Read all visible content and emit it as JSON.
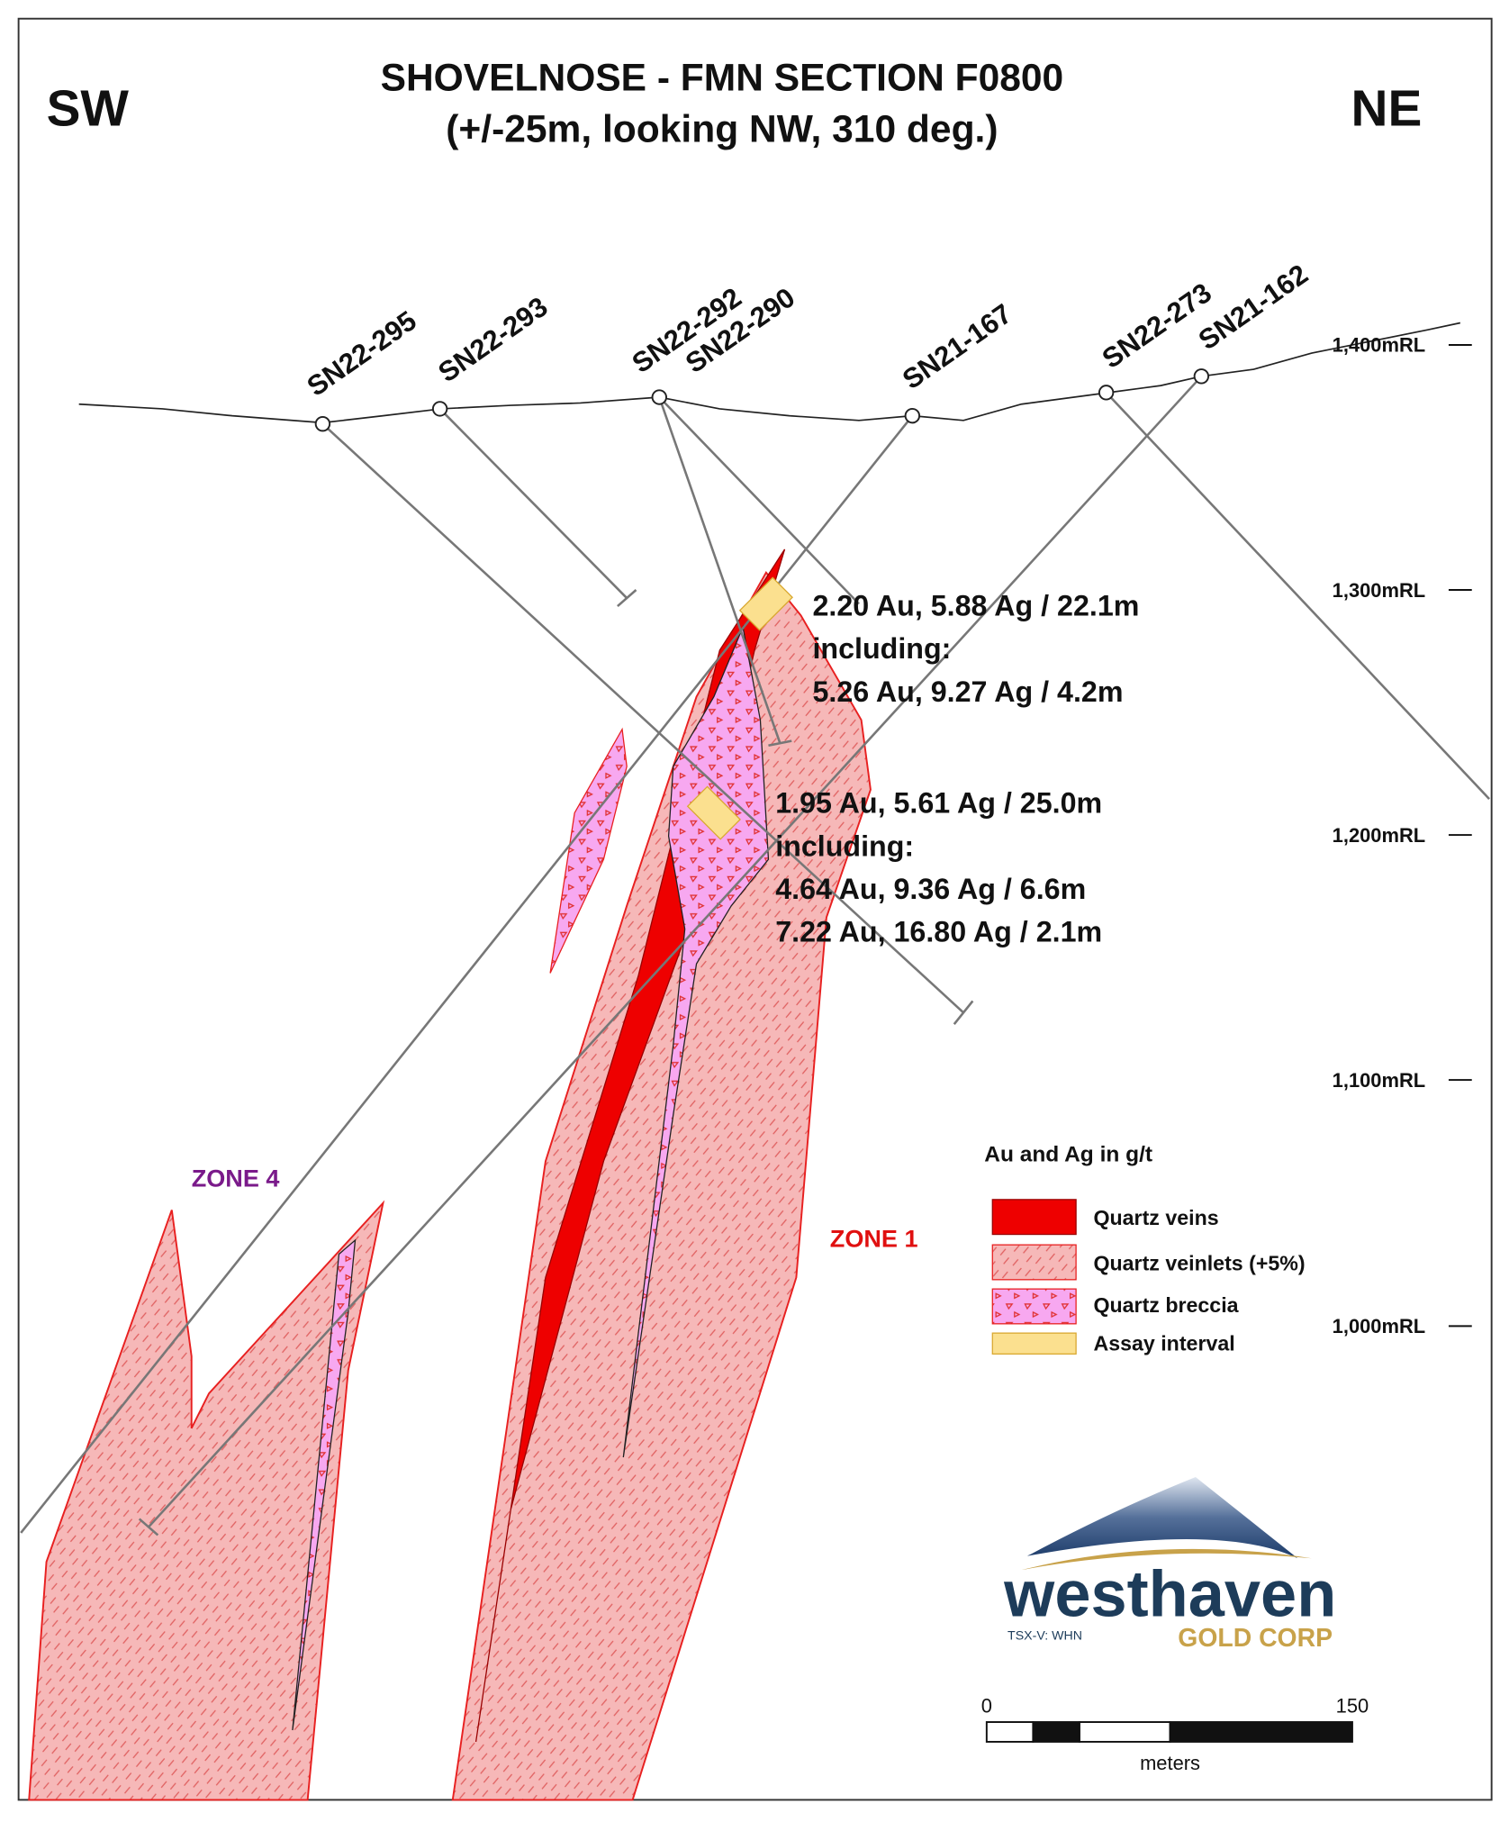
{
  "header": {
    "title_line1": "SHOVELNOSE - FMN SECTION F0800",
    "title_line2": "(+/-25m, looking NW, 310 deg.)",
    "left_direction": "SW",
    "right_direction": "NE"
  },
  "drill_holes": [
    "SN22-295",
    "SN22-293",
    "SN22-292",
    "SN22-290",
    "SN21-167",
    "SN22-273",
    "SN21-162"
  ],
  "elevations": [
    "1,400mRL",
    "1,300mRL",
    "1,200mRL",
    "1,100mRL",
    "1,000mRL"
  ],
  "intercepts": [
    {
      "lines": [
        "2.20 Au, 5.88 Ag / 22.1m",
        "including:",
        "5.26 Au, 9.27 Ag / 4.2m"
      ]
    },
    {
      "lines": [
        "1.95 Au, 5.61 Ag / 25.0m",
        "including:",
        "4.64 Au, 9.36 Ag / 6.6m",
        "7.22 Au, 16.80 Ag / 2.1m"
      ]
    }
  ],
  "zones": [
    "ZONE 4",
    "ZONE 1"
  ],
  "legend": {
    "title": "Au and Ag in g/t",
    "items": [
      "Quartz veins",
      "Quartz veinlets (+5%)",
      "Quartz breccia",
      "Assay interval"
    ]
  },
  "logo": {
    "name": "westhaven",
    "ticker": "TSX-V: WHN",
    "subtitle": "GOLD CORP"
  },
  "scale_bar": {
    "labels": [
      "0",
      "150"
    ],
    "unit": "meters"
  }
}
